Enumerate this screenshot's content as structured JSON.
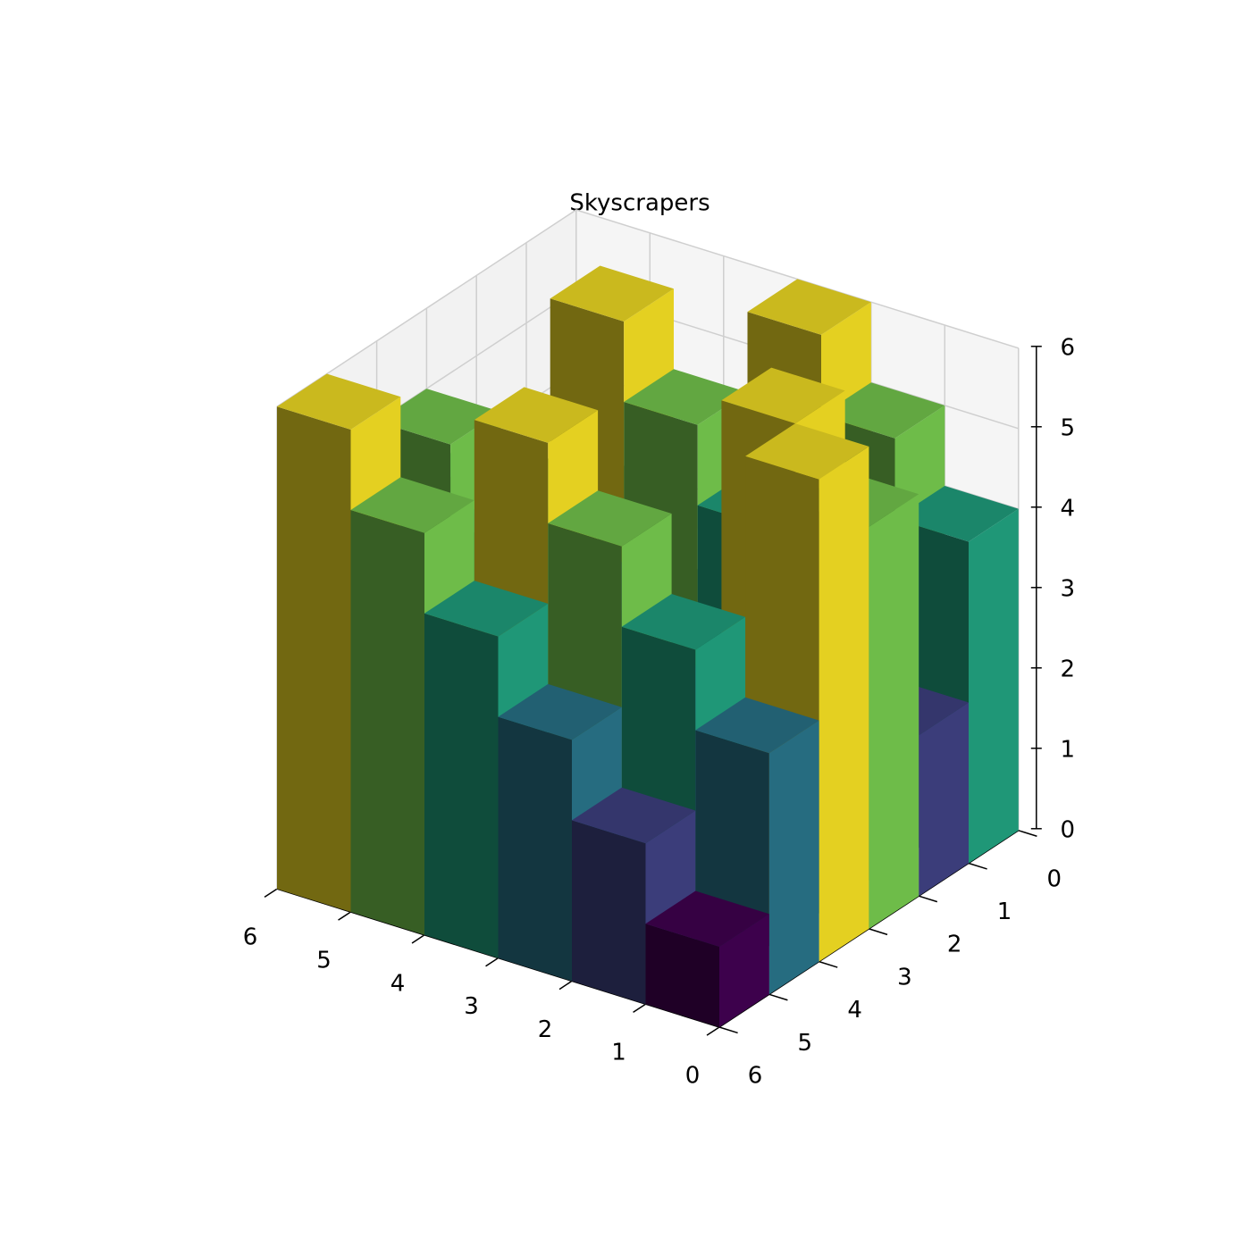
{
  "chart_data": {
    "type": "bar3d",
    "title": "Skyscrapers",
    "x": [
      0,
      1,
      2,
      3,
      4,
      5
    ],
    "y": [
      0,
      1,
      2,
      3,
      4,
      5
    ],
    "values": [
      [
        4,
        5,
        6,
        1,
        2,
        3
      ],
      [
        2,
        3,
        4,
        5,
        6,
        1
      ],
      [
        5,
        6,
        1,
        2,
        3,
        4
      ],
      [
        6,
        1,
        2,
        3,
        4,
        5
      ],
      [
        3,
        4,
        5,
        6,
        1,
        2
      ],
      [
        1,
        2,
        3,
        4,
        5,
        6
      ]
    ],
    "cmap": [
      "#440154",
      "#414487",
      "#2a788e",
      "#22a884",
      "#7ad151",
      "#fde725"
    ],
    "clim": [
      1,
      6
    ],
    "xlim": [
      0,
      6
    ],
    "ylim": [
      0,
      6
    ],
    "zlim": [
      0,
      6
    ],
    "xticks": [
      0,
      1,
      2,
      3,
      4,
      5,
      6
    ],
    "yticks": [
      0,
      1,
      2,
      3,
      4,
      5,
      6
    ],
    "zticks": [
      0,
      1,
      2,
      3,
      4,
      5,
      6
    ],
    "grid": true
  }
}
